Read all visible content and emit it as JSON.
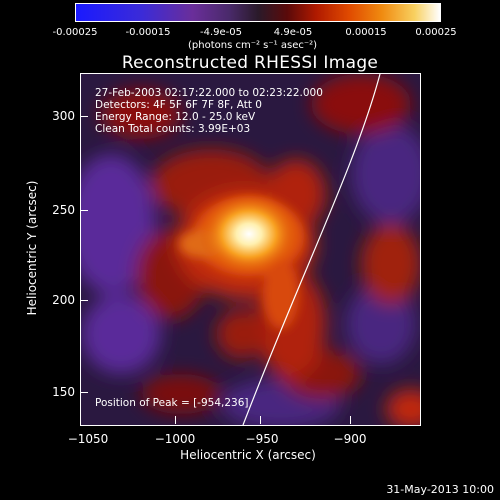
{
  "colorbar": {
    "ticks": [
      "-0.00025",
      "-0.00015",
      "-4.9e-05",
      "4.9e-05",
      "0.00015",
      "0.00025"
    ],
    "unit": "(photons cm⁻² s⁻¹ asec⁻²)"
  },
  "title": "Reconstructed RHESSI Image",
  "annotations": {
    "time_range": "27-Feb-2003 02:17:22.000 to 02:23:22.000",
    "detectors": "Detectors: 4F 5F 6F 7F 8F, Att 0",
    "energy": "Energy Range: 12.0 - 25.0 keV",
    "method": "Clean     Total counts: 3.99E+03",
    "peak": "Position of Peak = [-954,236]"
  },
  "axes": {
    "x_ticks": [
      "−1050",
      "−1000",
      "−950",
      "−900"
    ],
    "y_ticks": [
      "300",
      "250",
      "200",
      "150"
    ],
    "xlabel": "Heliocentric X (arcsec)",
    "ylabel": "Heliocentric Y (arcsec)"
  },
  "footer": {
    "date": "31-May-2013 10:00"
  },
  "colors": {
    "background": "#000000",
    "plot_bg": "#2a1840",
    "limb": "#ffffff"
  }
}
